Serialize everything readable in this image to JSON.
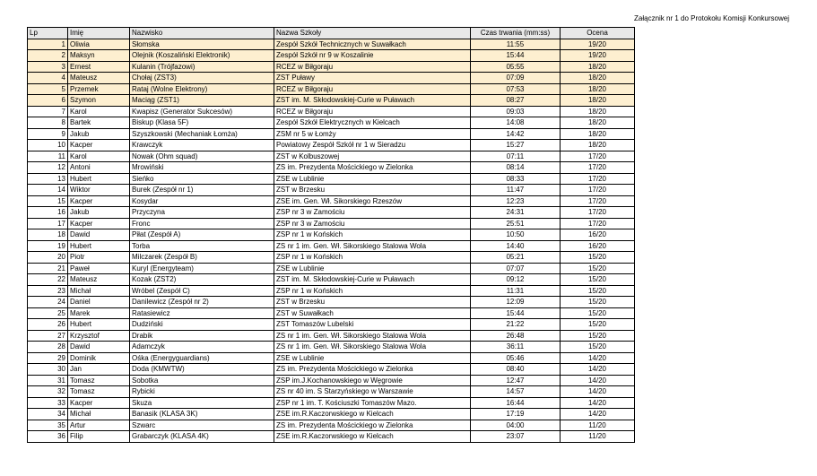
{
  "caption": "Załącznik nr 1 do Protokołu Komisji Konkursowej",
  "highlight_color": "#fdefd0",
  "header_color": "#e8e8e8",
  "highlighted_rows": 6,
  "columns": [
    "Lp",
    "Imię",
    "Nazwisko",
    "Nazwa Szkoły",
    "Czas trwania (mm:ss)",
    "Ocena"
  ],
  "rows": [
    [
      "1",
      "Oliwia",
      "Słomska",
      "Zespół Szkół Technicznych w Suwałkach",
      "11:55",
      "19/20"
    ],
    [
      "2",
      "Maksyn",
      "Olejnik (Koszaliński Elektronik)",
      "Zespół Szkół nr 9 w Koszalinie",
      "15:44",
      "19/20"
    ],
    [
      "3",
      "Ernest",
      "Kulanin (Trójfazowi)",
      "RCEZ w Biłgoraju",
      "05:55",
      "18/20"
    ],
    [
      "4",
      "Mateusz",
      "Chołaj (ZST3)",
      "ZST Puławy",
      "07:09",
      "18/20"
    ],
    [
      "5",
      "Przemek",
      "Rataj (Wolne Elektrony)",
      "RCEZ w Biłgoraju",
      "07:53",
      "18/20"
    ],
    [
      "6",
      "Szymon",
      "Maciąg (ZST1)",
      "ZST im. M. Skłodowskiej-Curie w Puławach",
      "08:27",
      "18/20"
    ],
    [
      "7",
      "Karol",
      "Kwapisz (Generator Sukcesów)",
      "RCEZ w Biłgoraju",
      "09:03",
      "18/20"
    ],
    [
      "8",
      "Bartek",
      "Biskup (Klasa 5F)",
      "Zespół Szkół Elektrycznych w Kielcach",
      "14:08",
      "18/20"
    ],
    [
      "9",
      "Jakub",
      "Szyszkowski (Mechaniak Łomża)",
      "ZSM nr 5 w Łomży",
      "14:42",
      "18/20"
    ],
    [
      "10",
      "Kacper",
      "Krawczyk",
      "Powiatowy Zespół Szkół nr 1 w Sieradzu",
      "15:27",
      "18/20"
    ],
    [
      "11",
      "Karol",
      "Nowak (Ohm squad)",
      "ZST w Kolbuszowej",
      "07:11",
      "17/20"
    ],
    [
      "12",
      "Antoni",
      "Mrowiński",
      "ZS im. Prezydenta Mościckiego w Zielonka",
      "08:14",
      "17/20"
    ],
    [
      "13",
      "Hubert",
      "Sieńko",
      "ZSE w Lublinie",
      "08:33",
      "17/20"
    ],
    [
      "14",
      "Wiktor",
      "Burek (Zespół nr 1)",
      "ZST w Brzesku",
      "11:47",
      "17/20"
    ],
    [
      "15",
      "Kacper",
      "Kosydar",
      "ZSE im. Gen. Wł. Sikorskiego Rzeszów",
      "12:23",
      "17/20"
    ],
    [
      "16",
      "Jakub",
      "Przyczyna",
      "ZSP nr 3 w Zamościu",
      "24:31",
      "17/20"
    ],
    [
      "17",
      "Kacper",
      "Fronc",
      "ZSP nr 3 w Zamościu",
      "25:51",
      "17/20"
    ],
    [
      "18",
      "Dawid",
      "Piłat (Zespół A)",
      "ZSP nr 1 w Końskich",
      "10:50",
      "16/20"
    ],
    [
      "19",
      "Hubert",
      "Torba",
      "ZS nr 1 im. Gen. Wł. Sikorskiego Stalowa Wola",
      "14:40",
      "16/20"
    ],
    [
      "20",
      "Piotr",
      "Milczarek (Zespół B)",
      "ZSP nr 1 w Końskich",
      "05:21",
      "15/20"
    ],
    [
      "21",
      "Paweł",
      "Kuryl (Energyteam)",
      "ZSE w Lublinie",
      "07:07",
      "15/20"
    ],
    [
      "22",
      "Mateusz",
      "Kozak (ZST2)",
      "ZST im. M. Skłodowskiej-Curie w Puławach",
      "09:12",
      "15/20"
    ],
    [
      "23",
      "Michał",
      "Wróbel (Zespół C)",
      "ZSP nr 1 w Końskich",
      "11:31",
      "15/20"
    ],
    [
      "24",
      "Daniel",
      "Danilewicz (Zespół nr 2)",
      "ZST w Brzesku",
      "12:09",
      "15/20"
    ],
    [
      "25",
      "Marek",
      "Ratasiewicz",
      "ZST w Suwałkach",
      "15:44",
      "15/20"
    ],
    [
      "26",
      "Hubert",
      "Dudziński",
      "ZST Tomaszów Lubelski",
      "21:22",
      "15/20"
    ],
    [
      "27",
      "Krzysztof",
      "Drabik",
      "ZS nr 1 im. Gen. Wł. Sikorskiego Stalowa Wola",
      "26:48",
      "15/20"
    ],
    [
      "28",
      "Dawid",
      "Adamczyk",
      "ZS nr 1 im. Gen. Wł. Sikorskiego Stalowa Wola",
      "36:11",
      "15/20"
    ],
    [
      "29",
      "Dominik",
      "Ośka (Energyguardians)",
      "ZSE w Lublinie",
      "05:46",
      "14/20"
    ],
    [
      "30",
      "Jan",
      "Doda (KMWTW)",
      "ZS im. Prezydenta Mościckiego w Zielonka",
      "08:40",
      "14/20"
    ],
    [
      "31",
      "Tomasz",
      "Sobotka",
      "ZSP im.J.Kochanowskiego w Węgrowie",
      "12:47",
      "14/20"
    ],
    [
      "32",
      "Tomasz",
      "Rybicki",
      "ZS nr 40 im. S Starzyńskiego w Warszawie",
      "14:57",
      "14/20"
    ],
    [
      "33",
      "Kacper",
      "Skuza",
      "ZSP nr 1 im. T. Kościuszki Tomaszów Mazo.",
      "16:44",
      "14/20"
    ],
    [
      "34",
      "Michał",
      "Banasik (KLASA 3K)",
      "ZSE im.R.Kaczorwskiego w Kielcach",
      "17:19",
      "14/20"
    ],
    [
      "35",
      "Artur",
      "Szwarc",
      "ZS im. Prezydenta Mościckiego w Zielonka",
      "04:00",
      "11/20"
    ],
    [
      "36",
      "Filip",
      "Grabarczyk (KLASA 4K)",
      "ZSE im.R.Kaczorwskiego w Kielcach",
      "23:07",
      "11/20"
    ]
  ]
}
